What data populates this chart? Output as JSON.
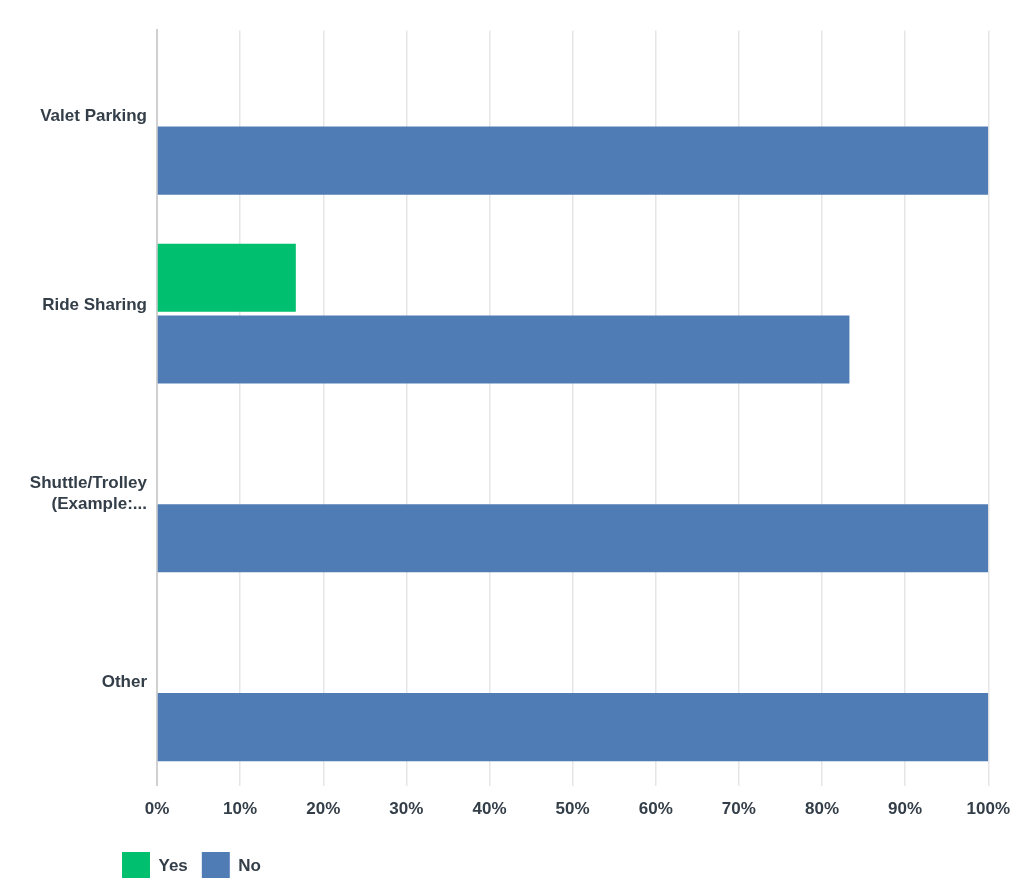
{
  "chart_data": {
    "type": "bar",
    "orientation": "horizontal",
    "categories": [
      "Valet Parking",
      "Ride Sharing",
      "Shuttle/Trolley (Example:...",
      "Other"
    ],
    "series": [
      {
        "name": "Yes",
        "color": "#00bf6f",
        "values": [
          0,
          16.7,
          0,
          0
        ]
      },
      {
        "name": "No",
        "color": "#507cb6",
        "values": [
          100,
          83.3,
          100,
          100
        ]
      }
    ],
    "xlim": [
      0,
      100
    ],
    "xticks": [
      {
        "value": 0,
        "label": "0%"
      },
      {
        "value": 10,
        "label": "10%"
      },
      {
        "value": 20,
        "label": "20%"
      },
      {
        "value": 30,
        "label": "30%"
      },
      {
        "value": 40,
        "label": "40%"
      },
      {
        "value": 50,
        "label": "50%"
      },
      {
        "value": 60,
        "label": "60%"
      },
      {
        "value": 70,
        "label": "70%"
      },
      {
        "value": 80,
        "label": "80%"
      },
      {
        "value": 90,
        "label": "90%"
      },
      {
        "value": 100,
        "label": "100%"
      }
    ],
    "grid": "x",
    "legend": "bottom left"
  }
}
